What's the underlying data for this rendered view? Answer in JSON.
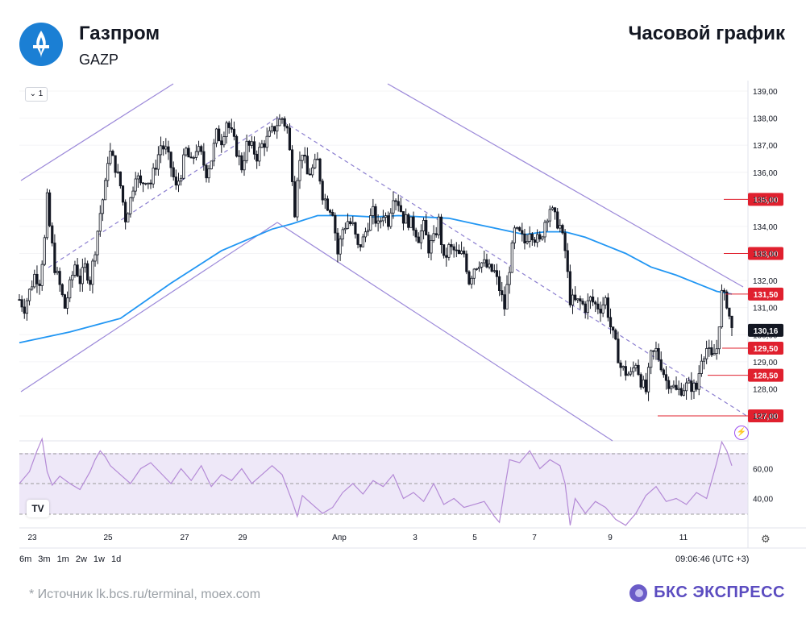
{
  "header": {
    "company": "Газпром",
    "ticker": "GAZP",
    "chart_title": "Часовой график",
    "logo_icon": "gazprom-logo-icon"
  },
  "toolbar": {
    "interval_label": "1",
    "periods": [
      "6m",
      "3m",
      "1m",
      "2w",
      "1w",
      "1d"
    ],
    "timestamp": "09:06:46 (UTC +3)",
    "tv_badge": "TV"
  },
  "footer": {
    "source": "*  Источник lk.bcs.ru/terminal, moex.com",
    "brand": "БКС ЭКСПРЕСС"
  },
  "colors": {
    "candle": "#131722",
    "ma": "#2196f3",
    "channel": "#9c89d9",
    "dashed": "#8c7fd0",
    "level": "#e0202e",
    "rsi": "#b48ad6",
    "rsi_band": "#eee8f8"
  },
  "chart_data": {
    "type": "candlestick",
    "price_axis": {
      "range": [
        126.5,
        139.6
      ],
      "ticks": [
        "139,00",
        "138,00",
        "137,00",
        "136,00",
        "135,00",
        "134,00",
        "133,00",
        "132,00",
        "131,00",
        "130,00",
        "129,00",
        "128,00",
        "127,00"
      ]
    },
    "x_axis": {
      "labels": [
        "23",
        "25",
        "27",
        "29",
        "Апр",
        "3",
        "5",
        "7",
        "9",
        "11"
      ]
    },
    "levels": [
      {
        "label": "135,00",
        "value": 135.0
      },
      {
        "label": "133,00",
        "value": 133.0
      },
      {
        "label": "131,50",
        "value": 131.5
      },
      {
        "label": "129,50",
        "value": 129.5
      },
      {
        "label": "128,50",
        "value": 128.5
      },
      {
        "label": "127,00",
        "value": 127.0
      }
    ],
    "last_price": {
      "label": "130,16",
      "value": 130.16
    },
    "close_path": [
      [
        0,
        131.3
      ],
      [
        2,
        131.0
      ],
      [
        4,
        131.6
      ],
      [
        6,
        132.2
      ],
      [
        8,
        132.0
      ],
      [
        10,
        133.5
      ],
      [
        11,
        135.0
      ],
      [
        12,
        134.0
      ],
      [
        14,
        132.5
      ],
      [
        16,
        131.8
      ],
      [
        18,
        131.0
      ],
      [
        20,
        131.8
      ],
      [
        22,
        132.6
      ],
      [
        24,
        132.0
      ],
      [
        26,
        132.5
      ],
      [
        28,
        132.0
      ],
      [
        30,
        133.2
      ],
      [
        32,
        134.5
      ],
      [
        34,
        135.5
      ],
      [
        35,
        136.5
      ],
      [
        36,
        136.7
      ],
      [
        38,
        136.2
      ],
      [
        40,
        135.5
      ],
      [
        42,
        134.3
      ],
      [
        44,
        135.0
      ],
      [
        46,
        136.0
      ],
      [
        48,
        135.5
      ],
      [
        50,
        135.8
      ],
      [
        52,
        135.6
      ],
      [
        54,
        136.3
      ],
      [
        56,
        137.0
      ],
      [
        58,
        136.8
      ],
      [
        60,
        136.2
      ],
      [
        62,
        135.4
      ],
      [
        64,
        136.0
      ],
      [
        66,
        136.8
      ],
      [
        68,
        136.3
      ],
      [
        70,
        136.9
      ],
      [
        72,
        136.6
      ],
      [
        74,
        136.0
      ],
      [
        76,
        136.5
      ],
      [
        78,
        137.4
      ],
      [
        80,
        137.2
      ],
      [
        82,
        137.9
      ],
      [
        84,
        137.4
      ],
      [
        86,
        136.8
      ],
      [
        88,
        136.2
      ],
      [
        90,
        137.0
      ],
      [
        92,
        136.9
      ],
      [
        94,
        136.6
      ],
      [
        96,
        137.0
      ],
      [
        98,
        137.2
      ],
      [
        100,
        137.5
      ],
      [
        102,
        137.8
      ],
      [
        104,
        138.0
      ],
      [
        106,
        137.6
      ],
      [
        108,
        135.9
      ],
      [
        109,
        134.6
      ],
      [
        110,
        135.9
      ],
      [
        112,
        136.8
      ],
      [
        114,
        135.9
      ],
      [
        116,
        136.1
      ],
      [
        118,
        136.4
      ],
      [
        120,
        135.2
      ],
      [
        122,
        134.8
      ],
      [
        124,
        134.6
      ],
      [
        126,
        133.0
      ],
      [
        128,
        133.9
      ],
      [
        130,
        134.2
      ],
      [
        132,
        134.0
      ],
      [
        134,
        133.2
      ],
      [
        136,
        133.5
      ],
      [
        138,
        134.1
      ],
      [
        140,
        134.5
      ],
      [
        142,
        134.0
      ],
      [
        144,
        134.5
      ],
      [
        146,
        134.2
      ],
      [
        148,
        135.2
      ],
      [
        150,
        134.9
      ],
      [
        152,
        134.3
      ],
      [
        154,
        134.2
      ],
      [
        156,
        134.0
      ],
      [
        158,
        133.6
      ],
      [
        160,
        134.0
      ],
      [
        162,
        133.2
      ],
      [
        164,
        133.5
      ],
      [
        166,
        134.2
      ],
      [
        168,
        132.7
      ],
      [
        170,
        133.2
      ],
      [
        172,
        133.1
      ],
      [
        174,
        132.9
      ],
      [
        176,
        133.0
      ],
      [
        178,
        132.0
      ],
      [
        180,
        132.5
      ],
      [
        182,
        132.7
      ],
      [
        184,
        132.6
      ],
      [
        186,
        132.4
      ],
      [
        188,
        132.3
      ],
      [
        190,
        131.7
      ],
      [
        192,
        131.0
      ],
      [
        194,
        132.5
      ],
      [
        196,
        133.8
      ],
      [
        198,
        133.7
      ],
      [
        200,
        133.4
      ],
      [
        202,
        133.9
      ],
      [
        204,
        133.6
      ],
      [
        206,
        133.4
      ],
      [
        208,
        134.2
      ],
      [
        210,
        134.7
      ],
      [
        212,
        134.3
      ],
      [
        214,
        134.0
      ],
      [
        216,
        133.1
      ],
      [
        218,
        131.3
      ],
      [
        220,
        131.2
      ],
      [
        222,
        131.2
      ],
      [
        224,
        131.0
      ],
      [
        226,
        131.3
      ],
      [
        228,
        131.1
      ],
      [
        230,
        131.0
      ],
      [
        232,
        131.3
      ],
      [
        234,
        130.3
      ],
      [
        236,
        129.6
      ],
      [
        238,
        128.8
      ],
      [
        240,
        128.6
      ],
      [
        242,
        128.5
      ],
      [
        244,
        129.0
      ],
      [
        246,
        128.3
      ],
      [
        248,
        127.9
      ],
      [
        250,
        129.2
      ],
      [
        252,
        129.4
      ],
      [
        254,
        128.9
      ],
      [
        256,
        128.3
      ],
      [
        258,
        128.2
      ],
      [
        260,
        127.9
      ],
      [
        262,
        128.0
      ],
      [
        264,
        128.1
      ],
      [
        266,
        128.1
      ],
      [
        268,
        128.0
      ],
      [
        270,
        129.2
      ],
      [
        272,
        129.5
      ],
      [
        274,
        129.1
      ],
      [
        276,
        129.5
      ],
      [
        278,
        131.5
      ],
      [
        280,
        131.2
      ],
      [
        282,
        130.16
      ]
    ],
    "ma_series": [
      [
        0,
        129.7
      ],
      [
        20,
        130.1
      ],
      [
        40,
        130.6
      ],
      [
        60,
        131.9
      ],
      [
        80,
        133.1
      ],
      [
        100,
        133.9
      ],
      [
        108,
        134.1
      ],
      [
        118,
        134.4
      ],
      [
        130,
        134.4
      ],
      [
        140,
        134.35
      ],
      [
        150,
        134.4
      ],
      [
        160,
        134.35
      ],
      [
        170,
        134.3
      ],
      [
        180,
        134.1
      ],
      [
        190,
        133.9
      ],
      [
        200,
        133.7
      ],
      [
        208,
        133.8
      ],
      [
        216,
        133.8
      ],
      [
        224,
        133.6
      ],
      [
        232,
        133.3
      ],
      [
        240,
        133.0
      ],
      [
        250,
        132.5
      ],
      [
        260,
        132.2
      ],
      [
        268,
        131.9
      ],
      [
        276,
        131.6
      ],
      [
        282,
        131.5
      ]
    ],
    "rsi": {
      "ticks": [
        "60,00",
        "40,00"
      ],
      "bands": [
        70,
        30
      ],
      "midline": 50,
      "values": [
        [
          0,
          50
        ],
        [
          4,
          58
        ],
        [
          7,
          72
        ],
        [
          9,
          80
        ],
        [
          11,
          58
        ],
        [
          13,
          49
        ],
        [
          16,
          55
        ],
        [
          20,
          50
        ],
        [
          24,
          46
        ],
        [
          28,
          58
        ],
        [
          30,
          66
        ],
        [
          32,
          72
        ],
        [
          34,
          68
        ],
        [
          36,
          62
        ],
        [
          40,
          56
        ],
        [
          44,
          50
        ],
        [
          48,
          60
        ],
        [
          52,
          64
        ],
        [
          56,
          57
        ],
        [
          60,
          50
        ],
        [
          64,
          60
        ],
        [
          68,
          52
        ],
        [
          72,
          62
        ],
        [
          76,
          48
        ],
        [
          80,
          56
        ],
        [
          84,
          52
        ],
        [
          88,
          60
        ],
        [
          92,
          50
        ],
        [
          96,
          56
        ],
        [
          100,
          62
        ],
        [
          104,
          56
        ],
        [
          108,
          38
        ],
        [
          110,
          28
        ],
        [
          112,
          42
        ],
        [
          116,
          36
        ],
        [
          120,
          30
        ],
        [
          124,
          34
        ],
        [
          128,
          44
        ],
        [
          132,
          50
        ],
        [
          136,
          43
        ],
        [
          140,
          52
        ],
        [
          144,
          48
        ],
        [
          148,
          56
        ],
        [
          152,
          40
        ],
        [
          156,
          44
        ],
        [
          160,
          38
        ],
        [
          164,
          50
        ],
        [
          168,
          36
        ],
        [
          172,
          40
        ],
        [
          176,
          34
        ],
        [
          180,
          36
        ],
        [
          184,
          38
        ],
        [
          188,
          28
        ],
        [
          190,
          24
        ],
        [
          192,
          46
        ],
        [
          194,
          66
        ],
        [
          198,
          64
        ],
        [
          202,
          72
        ],
        [
          206,
          60
        ],
        [
          210,
          66
        ],
        [
          214,
          62
        ],
        [
          216,
          50
        ],
        [
          218,
          22
        ],
        [
          220,
          40
        ],
        [
          224,
          30
        ],
        [
          228,
          38
        ],
        [
          232,
          34
        ],
        [
          236,
          26
        ],
        [
          240,
          22
        ],
        [
          244,
          30
        ],
        [
          248,
          42
        ],
        [
          252,
          48
        ],
        [
          256,
          38
        ],
        [
          260,
          40
        ],
        [
          264,
          36
        ],
        [
          268,
          44
        ],
        [
          272,
          40
        ],
        [
          276,
          64
        ],
        [
          278,
          78
        ],
        [
          280,
          72
        ],
        [
          282,
          62
        ]
      ]
    }
  }
}
